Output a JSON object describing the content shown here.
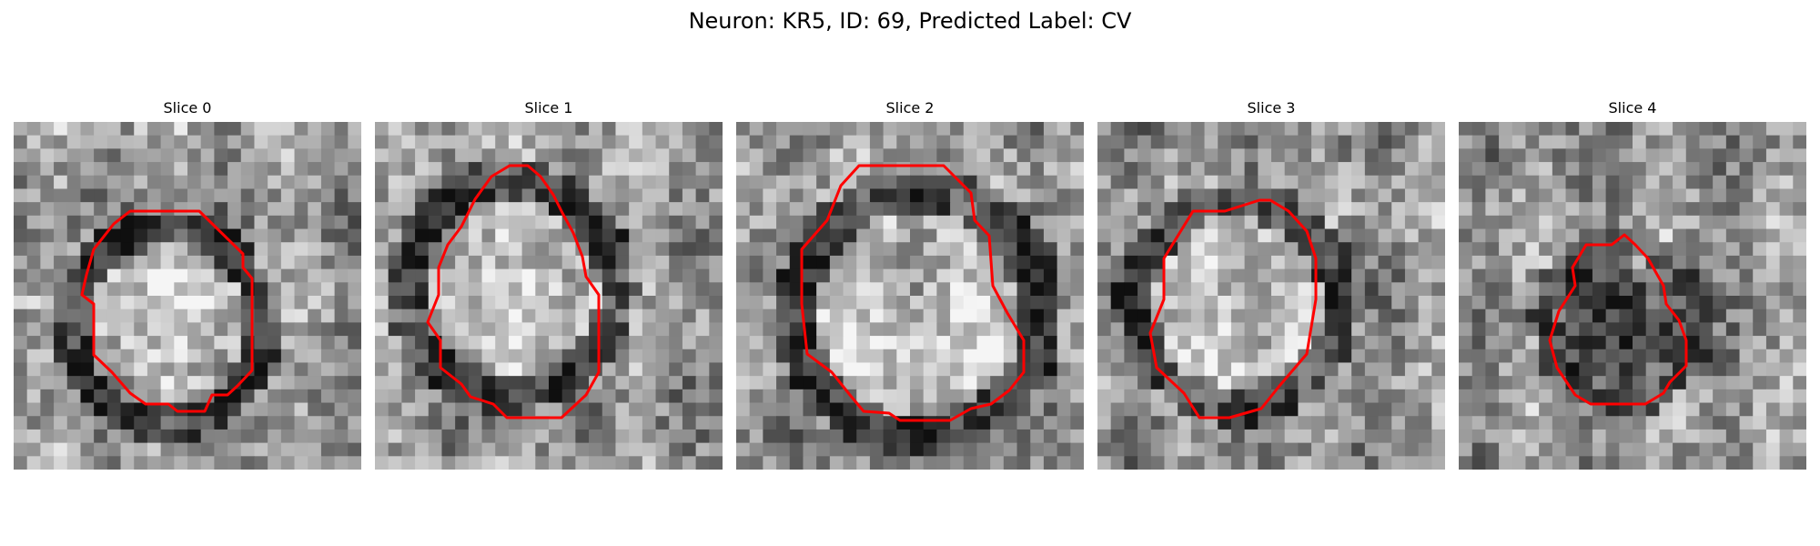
{
  "figure": {
    "title": "Neuron: KR5, ID: 69, Predicted Label: CV",
    "contour_color": "#ff0000",
    "colormap": "grayscale",
    "panels": [
      {
        "title": "Slice 0"
      },
      {
        "title": "Slice 1"
      },
      {
        "title": "Slice 2"
      },
      {
        "title": "Slice 3"
      },
      {
        "title": "Slice 4"
      }
    ]
  }
}
